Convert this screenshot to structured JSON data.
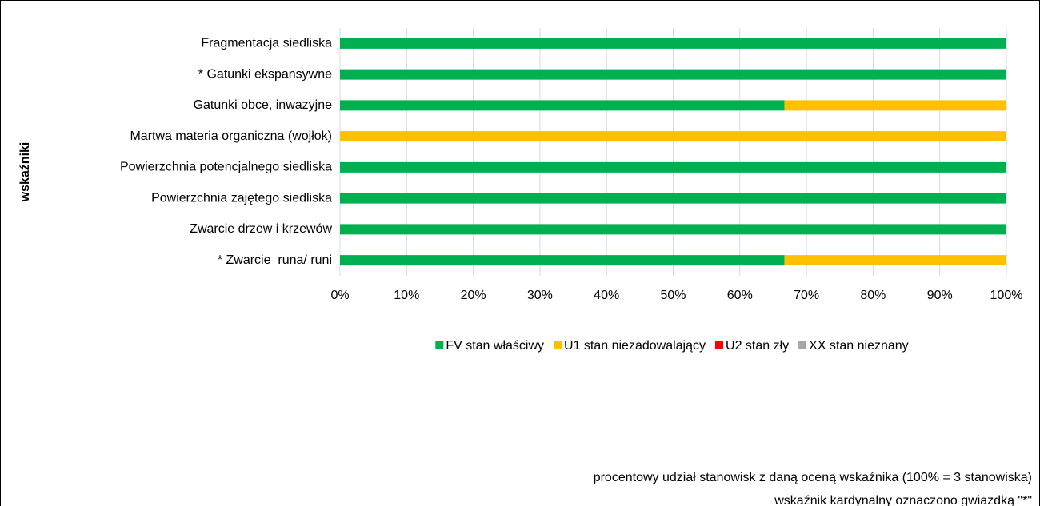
{
  "chart_data": {
    "type": "stacked-bar-horizontal",
    "y_axis_label": "wskaźniki",
    "categories": [
      "Fragmentacja siedliska",
      "* Gatunki ekspansywne",
      "Gatunki obce, inwazyjne",
      "Martwa materia organiczna (wojłok)",
      "Powierzchnia potencjalnego siedliska",
      "Powierzchnia zajętego siedliska",
      "Zwarcie drzew i krzewów",
      "* Zwarcie  runa/ runi"
    ],
    "series": [
      {
        "name": "FV stan właściwy",
        "color": "#00b050",
        "values": [
          100,
          100,
          66.7,
          0,
          100,
          100,
          100,
          66.7
        ]
      },
      {
        "name": "U1 stan niezadowalający",
        "color": "#ffc000",
        "values": [
          0,
          0,
          33.3,
          100,
          0,
          0,
          0,
          33.3
        ]
      },
      {
        "name": "U2 stan zły",
        "color": "#ff0000",
        "values": [
          0,
          0,
          0,
          0,
          0,
          0,
          0,
          0
        ]
      },
      {
        "name": "XX stan nieznany",
        "color": "#a6a6a6",
        "values": [
          0,
          0,
          0,
          0,
          0,
          0,
          0,
          0
        ]
      }
    ],
    "xlim": [
      0,
      100
    ],
    "xticks": [
      {
        "value": 0,
        "label": "0%"
      },
      {
        "value": 10,
        "label": "10%"
      },
      {
        "value": 20,
        "label": "20%"
      },
      {
        "value": 30,
        "label": "30%"
      },
      {
        "value": 40,
        "label": "40%"
      },
      {
        "value": 50,
        "label": "50%"
      },
      {
        "value": 60,
        "label": "60%"
      },
      {
        "value": 70,
        "label": "70%"
      },
      {
        "value": 80,
        "label": "80%"
      },
      {
        "value": 90,
        "label": "90%"
      },
      {
        "value": 100,
        "label": "100%"
      }
    ],
    "grid": true,
    "legend": "bottom",
    "notes": [
      "procentowy udział stanowisk z daną oceną wskaźnika (100% = 3 stanowiska)",
      "wskaźnik kardynalny oznaczono gwiazdką \"*\""
    ]
  }
}
